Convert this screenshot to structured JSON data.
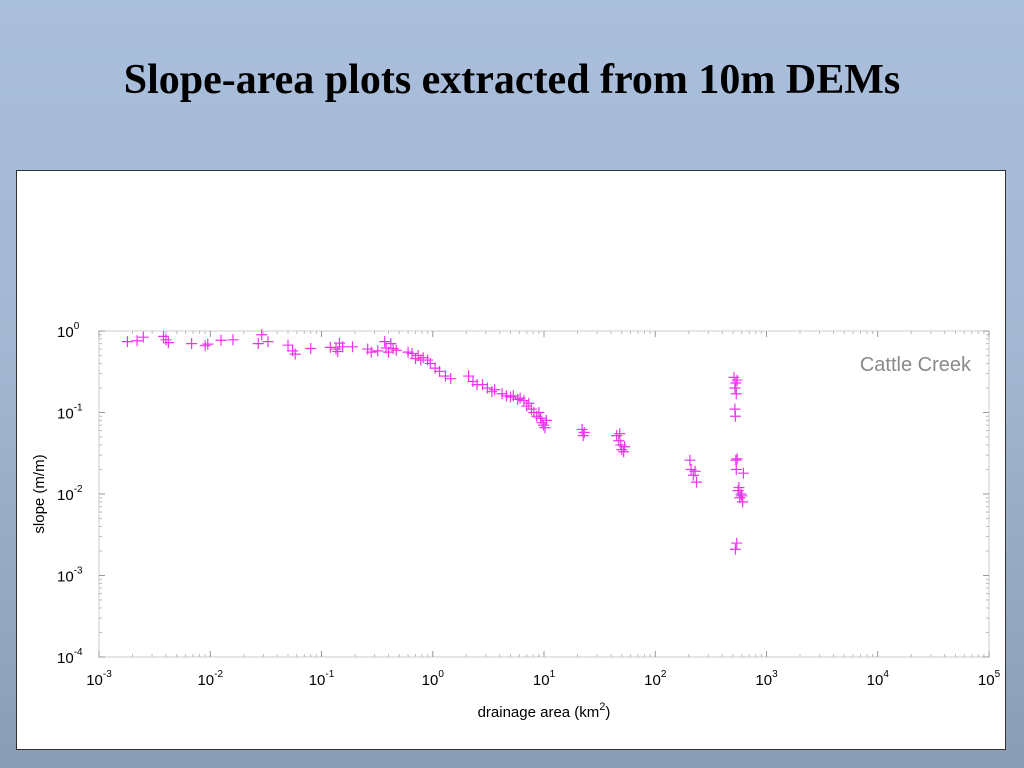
{
  "slide": {
    "title": "Slope-area plots extracted from 10m DEMs"
  },
  "chart_data": {
    "type": "scatter",
    "title": "",
    "xlabel": "drainage area (km",
    "xlabel_sup": "2",
    "xlabel_end": ")",
    "ylabel": "slope (m/m)",
    "xscale": "log",
    "yscale": "log",
    "xlim": [
      0.001,
      100000
    ],
    "ylim": [
      0.0001,
      1
    ],
    "x_ticks": [
      {
        "base": "10",
        "exp": "-3",
        "value": 0.001
      },
      {
        "base": "10",
        "exp": "-2",
        "value": 0.01
      },
      {
        "base": "10",
        "exp": "-1",
        "value": 0.1
      },
      {
        "base": "10",
        "exp": "0",
        "value": 1
      },
      {
        "base": "10",
        "exp": "1",
        "value": 10
      },
      {
        "base": "10",
        "exp": "2",
        "value": 100
      },
      {
        "base": "10",
        "exp": "3",
        "value": 1000
      },
      {
        "base": "10",
        "exp": "4",
        "value": 10000
      },
      {
        "base": "10",
        "exp": "5",
        "value": 100000
      }
    ],
    "y_ticks": [
      {
        "base": "10",
        "exp": "0",
        "value": 1
      },
      {
        "base": "10",
        "exp": "-1",
        "value": 0.1
      },
      {
        "base": "10",
        "exp": "-2",
        "value": 0.01
      },
      {
        "base": "10",
        "exp": "-3",
        "value": 0.001
      },
      {
        "base": "10",
        "exp": "-4",
        "value": 0.0001
      }
    ],
    "grid": false,
    "marker": "+",
    "marker_color": "#ee33ee",
    "annotation": "Cattle Creek",
    "annotation_position": "top-right",
    "points": [
      [
        0.0018,
        0.74
      ],
      [
        0.0022,
        0.76
      ],
      [
        0.0025,
        0.84
      ],
      [
        0.0038,
        0.86
      ],
      [
        0.004,
        0.78
      ],
      [
        0.0042,
        0.72
      ],
      [
        0.0068,
        0.7
      ],
      [
        0.009,
        0.66
      ],
      [
        0.0095,
        0.69
      ],
      [
        0.0125,
        0.77
      ],
      [
        0.016,
        0.78
      ],
      [
        0.027,
        0.7
      ],
      [
        0.029,
        0.9
      ],
      [
        0.033,
        0.74
      ],
      [
        0.05,
        0.67
      ],
      [
        0.055,
        0.57
      ],
      [
        0.058,
        0.52
      ],
      [
        0.08,
        0.61
      ],
      [
        0.12,
        0.63
      ],
      [
        0.135,
        0.6
      ],
      [
        0.14,
        0.56
      ],
      [
        0.145,
        0.71
      ],
      [
        0.155,
        0.64
      ],
      [
        0.19,
        0.64
      ],
      [
        0.26,
        0.6
      ],
      [
        0.28,
        0.55
      ],
      [
        0.32,
        0.57
      ],
      [
        0.37,
        0.74
      ],
      [
        0.38,
        0.62
      ],
      [
        0.4,
        0.55
      ],
      [
        0.42,
        0.7
      ],
      [
        0.44,
        0.61
      ],
      [
        0.47,
        0.58
      ],
      [
        0.6,
        0.55
      ],
      [
        0.65,
        0.53
      ],
      [
        0.7,
        0.46
      ],
      [
        0.74,
        0.5
      ],
      [
        0.78,
        0.44
      ],
      [
        0.82,
        0.47
      ],
      [
        0.9,
        0.44
      ],
      [
        0.95,
        0.4
      ],
      [
        1.05,
        0.35
      ],
      [
        1.15,
        0.32
      ],
      [
        1.3,
        0.28
      ],
      [
        1.45,
        0.26
      ],
      [
        2.1,
        0.28
      ],
      [
        2.3,
        0.24
      ],
      [
        2.5,
        0.22
      ],
      [
        2.8,
        0.22
      ],
      [
        3.1,
        0.2
      ],
      [
        3.4,
        0.18
      ],
      [
        3.6,
        0.19
      ],
      [
        4.2,
        0.17
      ],
      [
        4.6,
        0.16
      ],
      [
        5.0,
        0.155
      ],
      [
        5.3,
        0.16
      ],
      [
        5.8,
        0.145
      ],
      [
        6.1,
        0.15
      ],
      [
        6.6,
        0.14
      ],
      [
        7.0,
        0.12
      ],
      [
        7.3,
        0.13
      ],
      [
        7.7,
        0.11
      ],
      [
        8.1,
        0.1
      ],
      [
        8.6,
        0.09
      ],
      [
        9.0,
        0.1
      ],
      [
        9.3,
        0.085
      ],
      [
        9.6,
        0.075
      ],
      [
        9.9,
        0.07
      ],
      [
        10.2,
        0.065
      ],
      [
        10.5,
        0.08
      ],
      [
        22,
        0.062
      ],
      [
        22.5,
        0.052
      ],
      [
        23,
        0.057
      ],
      [
        45,
        0.052
      ],
      [
        47,
        0.045
      ],
      [
        48,
        0.055
      ],
      [
        49,
        0.04
      ],
      [
        50,
        0.035
      ],
      [
        52,
        0.033
      ],
      [
        53,
        0.038
      ],
      [
        205,
        0.026
      ],
      [
        210,
        0.02
      ],
      [
        220,
        0.017
      ],
      [
        228,
        0.019
      ],
      [
        235,
        0.014
      ],
      [
        510,
        0.27
      ],
      [
        520,
        0.2
      ],
      [
        530,
        0.23
      ],
      [
        535,
        0.17
      ],
      [
        545,
        0.25
      ],
      [
        520,
        0.11
      ],
      [
        525,
        0.09
      ],
      [
        530,
        0.026
      ],
      [
        535,
        0.02
      ],
      [
        545,
        0.027
      ],
      [
        555,
        0.011
      ],
      [
        565,
        0.012
      ],
      [
        575,
        0.009
      ],
      [
        590,
        0.01
      ],
      [
        600,
        0.0095
      ],
      [
        610,
        0.008
      ],
      [
        620,
        0.018
      ],
      [
        540,
        0.0025
      ],
      [
        525,
        0.0021
      ]
    ]
  }
}
